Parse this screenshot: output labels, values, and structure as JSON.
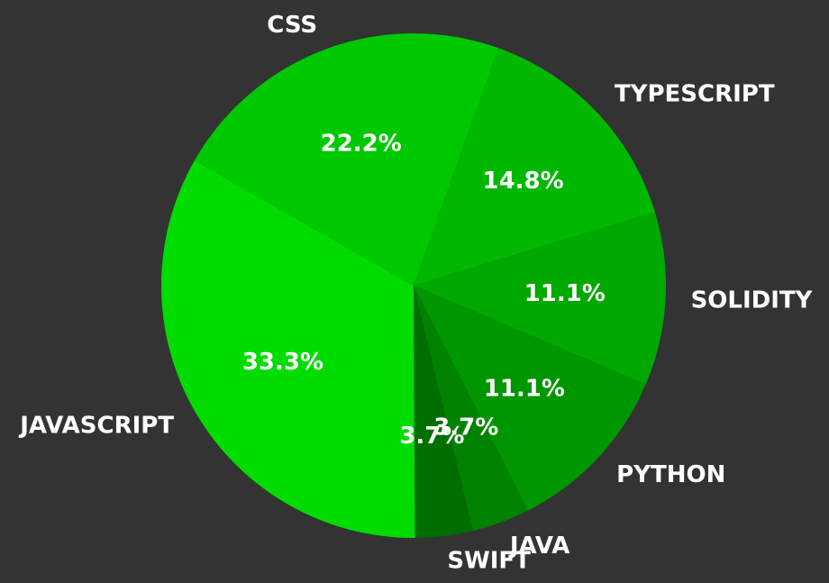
{
  "chart_data": {
    "type": "pie",
    "categories": [
      "CSS",
      "TYPESCRIPT",
      "SOLIDITY",
      "PYTHON",
      "JAVA",
      "SWIFT",
      "JAVASCRIPT"
    ],
    "values": [
      22.2,
      14.8,
      11.1,
      11.1,
      3.7,
      3.7,
      33.3
    ],
    "percent_labels": [
      "22.2%",
      "14.8%",
      "11.1%",
      "11.1%",
      "3.7%",
      "3.7%",
      "33.3%"
    ],
    "colors": [
      "#00c800",
      "#00b800",
      "#00a800",
      "#009600",
      "#008200",
      "#006e00",
      "#00dc00"
    ],
    "background": "#333333",
    "label_color": "#ffffff",
    "start_angle_deg": 0,
    "direction": "clockwise"
  }
}
